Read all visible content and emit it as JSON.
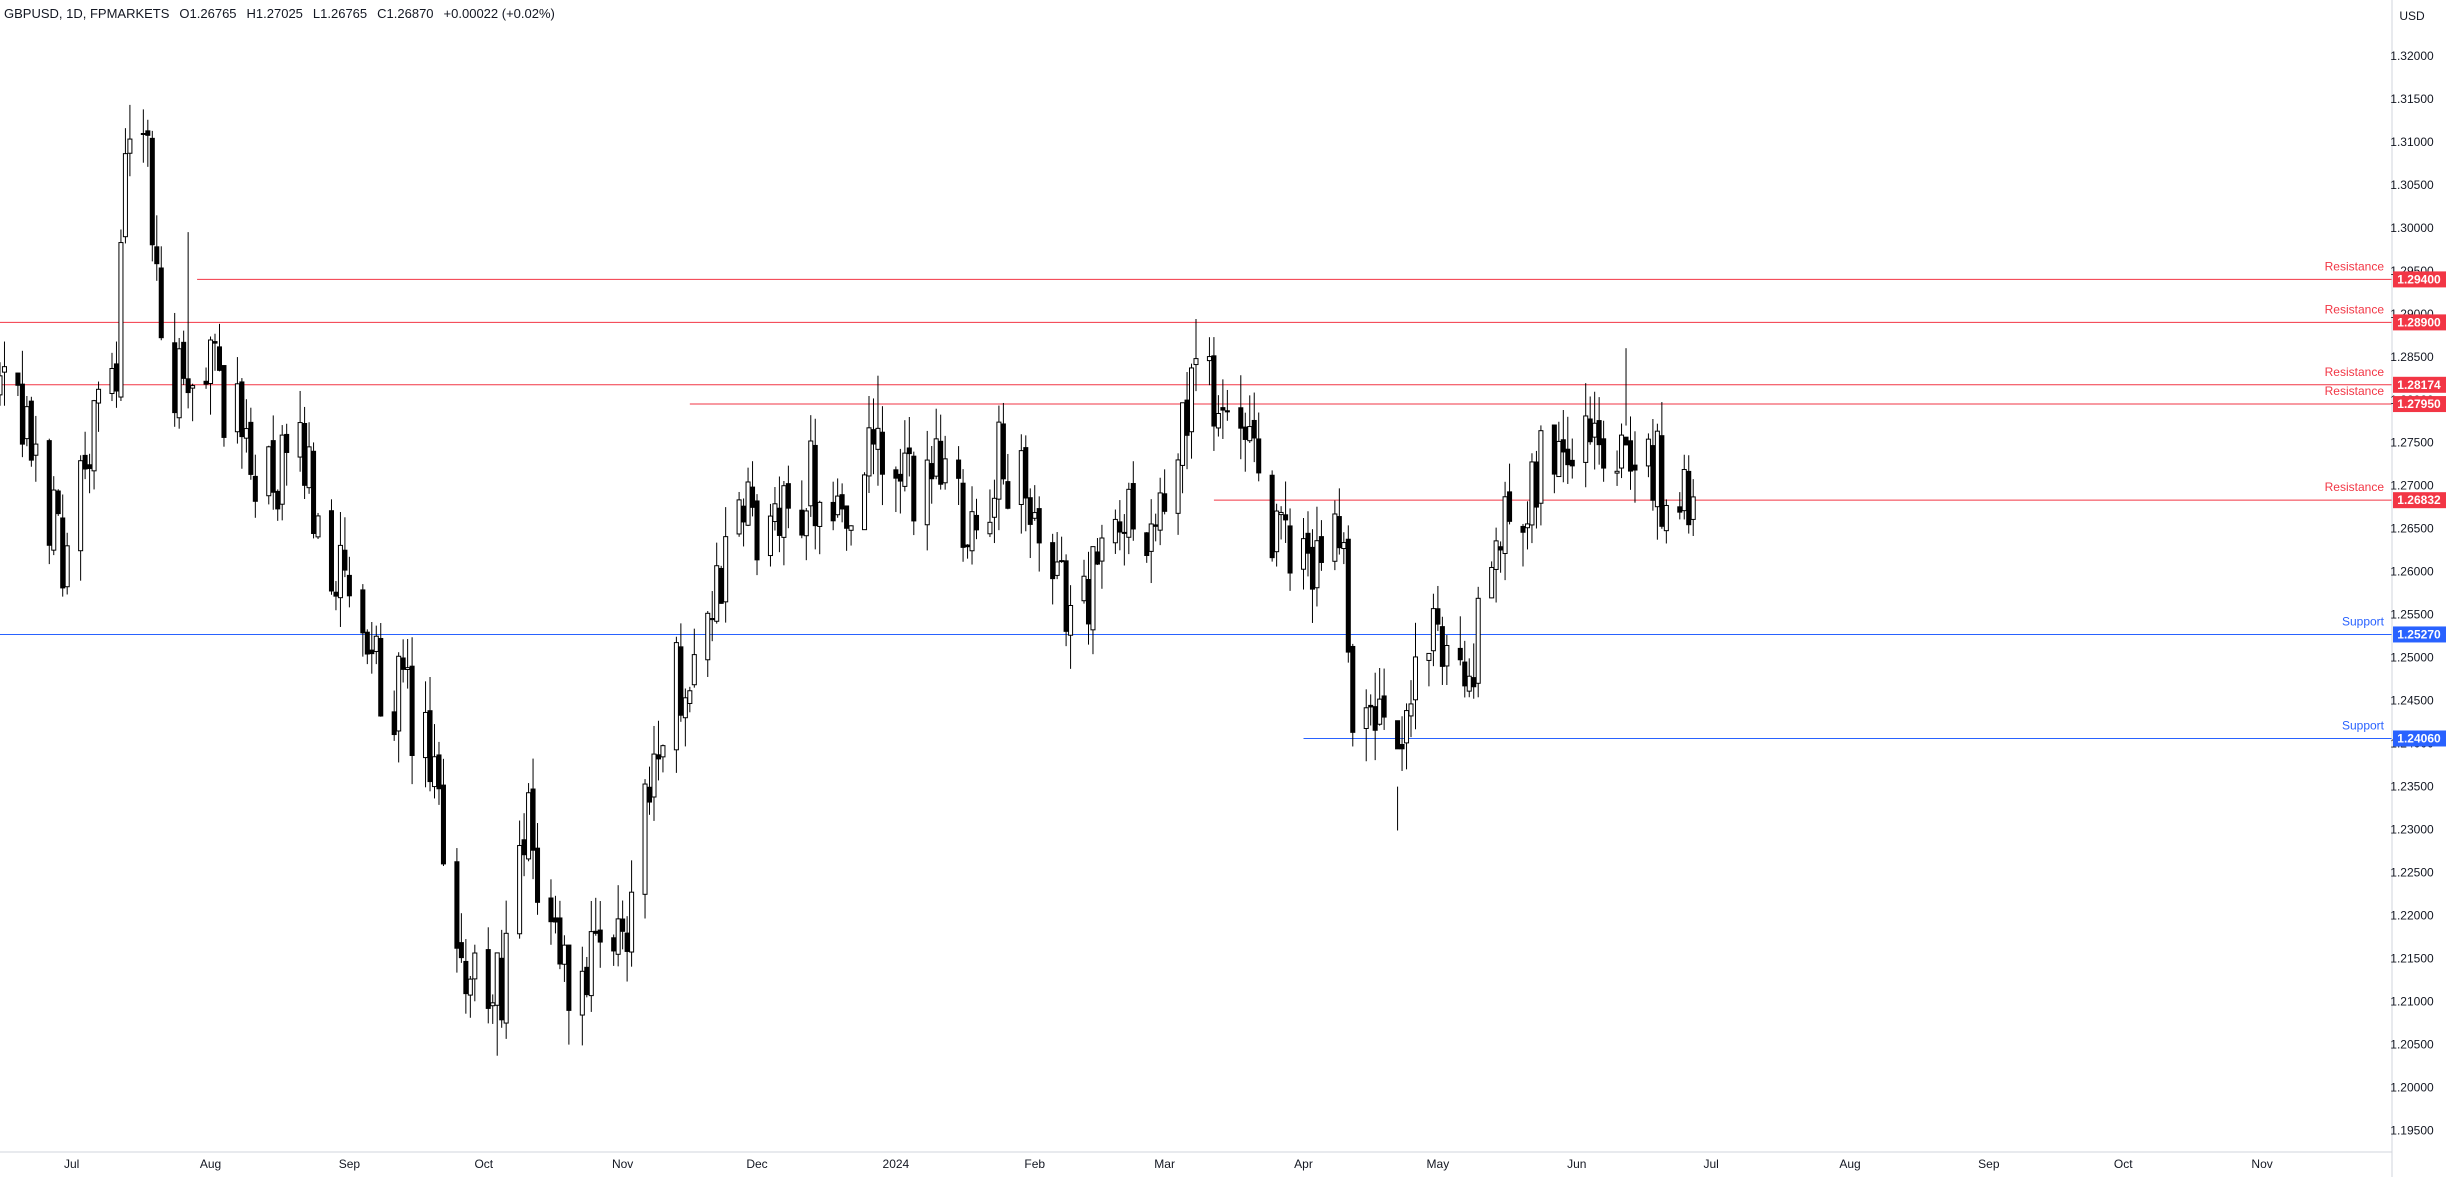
{
  "header": {
    "symbol": "GBPUSD, 1D, FPMARKETS",
    "open": "O1.26765",
    "high": "H1.27025",
    "low": "L1.26765",
    "close": "C1.26870",
    "change": "+0.00022 (+0.02%)"
  },
  "currency_label": "USD",
  "colors": {
    "resistance": "#f23645",
    "support": "#2962ff",
    "candle": "#000000",
    "grid_axis": "#787b86",
    "text": "#131722",
    "up_body": "#ffffff"
  },
  "chart_data": {
    "type": "candlestick",
    "timeframe": "1D",
    "ylim": [
      1.1925,
      1.3265
    ],
    "y_ticks": [
      "1.32000",
      "1.31500",
      "1.31000",
      "1.30500",
      "1.30000",
      "1.29500",
      "1.29000",
      "1.28500",
      "1.28000",
      "1.27500",
      "1.27000",
      "1.26500",
      "1.26000",
      "1.25500",
      "1.25000",
      "1.24500",
      "1.24000",
      "1.23500",
      "1.23000",
      "1.22500",
      "1.22000",
      "1.21500",
      "1.21000",
      "1.20500",
      "1.20000",
      "1.19500"
    ],
    "x_ticks": [
      "Jul",
      "Aug",
      "Sep",
      "Oct",
      "Nov",
      "Dec",
      "2024",
      "Feb",
      "Mar",
      "Apr",
      "May",
      "Jun",
      "Jul",
      "Aug",
      "Sep",
      "Oct",
      "Nov"
    ],
    "x_range": [
      "2023-06-15",
      "2024-11-30"
    ],
    "last_close": 1.2687,
    "levels": [
      {
        "kind": "resistance",
        "label": "Resistance",
        "price": 1.294,
        "price_label": "1.29400",
        "from": "2023-07-29"
      },
      {
        "kind": "resistance",
        "label": "Resistance",
        "price": 1.289,
        "price_label": "1.28900",
        "from": "2023-06-15"
      },
      {
        "kind": "resistance",
        "label": "Resistance",
        "price": 1.28174,
        "price_label": "1.28174",
        "from": "2023-06-15"
      },
      {
        "kind": "resistance",
        "label": "Resistance",
        "price": 1.2795,
        "price_label": "1.27950",
        "from": "2023-11-16"
      },
      {
        "kind": "resistance",
        "label": "Resistance",
        "price": 1.26832,
        "price_label": "1.26832",
        "from": "2024-03-12"
      },
      {
        "kind": "support",
        "label": "Support",
        "price": 1.2527,
        "price_label": "1.25270",
        "from": "2023-06-15"
      },
      {
        "kind": "support",
        "label": "Support",
        "price": 1.2406,
        "price_label": "1.24060",
        "from": "2024-04-01"
      }
    ],
    "close_path": [
      [
        "2023-06-15",
        1.281
      ],
      [
        "2023-06-22",
        1.274
      ],
      [
        "2023-06-29",
        1.263
      ],
      [
        "2023-07-06",
        1.276
      ],
      [
        "2023-07-11",
        1.286
      ],
      [
        "2023-07-14",
        1.313
      ],
      [
        "2023-07-18",
        1.307
      ],
      [
        "2023-07-21",
        1.286
      ],
      [
        "2023-07-27",
        1.279
      ],
      [
        "2023-07-31",
        1.286
      ],
      [
        "2023-08-07",
        1.277
      ],
      [
        "2023-08-15",
        1.269
      ],
      [
        "2023-08-21",
        1.274
      ],
      [
        "2023-08-28",
        1.262
      ],
      [
        "2023-09-05",
        1.249
      ],
      [
        "2023-09-12",
        1.246
      ],
      [
        "2023-09-19",
        1.237
      ],
      [
        "2023-09-26",
        1.216
      ],
      [
        "2023-10-03",
        1.208
      ],
      [
        "2023-10-11",
        1.229
      ],
      [
        "2023-10-20",
        1.212
      ],
      [
        "2023-10-27",
        1.213
      ],
      [
        "2023-11-02",
        1.219
      ],
      [
        "2023-11-06",
        1.236
      ],
      [
        "2023-11-14",
        1.248
      ],
      [
        "2023-11-21",
        1.256
      ],
      [
        "2023-11-28",
        1.267
      ],
      [
        "2023-12-05",
        1.264
      ],
      [
        "2023-12-13",
        1.271
      ],
      [
        "2023-12-20",
        1.267
      ],
      [
        "2023-12-27",
        1.273
      ],
      [
        "2024-01-04",
        1.269
      ],
      [
        "2024-01-11",
        1.274
      ],
      [
        "2024-01-18",
        1.266
      ],
      [
        "2024-01-25",
        1.273
      ],
      [
        "2024-01-31",
        1.267
      ],
      [
        "2024-02-05",
        1.256
      ],
      [
        "2024-02-14",
        1.259
      ],
      [
        "2024-02-22",
        1.268
      ],
      [
        "2024-03-01",
        1.265
      ],
      [
        "2024-03-08",
        1.285
      ],
      [
        "2024-03-14",
        1.279
      ],
      [
        "2024-03-20",
        1.272
      ],
      [
        "2024-03-27",
        1.263
      ],
      [
        "2024-04-03",
        1.261
      ],
      [
        "2024-04-09",
        1.267
      ],
      [
        "2024-04-12",
        1.245
      ],
      [
        "2024-04-19",
        1.241
      ],
      [
        "2024-04-22",
        1.235
      ],
      [
        "2024-04-26",
        1.249
      ],
      [
        "2024-05-03",
        1.252
      ],
      [
        "2024-05-09",
        1.249
      ],
      [
        "2024-05-15",
        1.265
      ],
      [
        "2024-05-22",
        1.272
      ],
      [
        "2024-05-29",
        1.276
      ],
      [
        "2024-06-03",
        1.278
      ],
      [
        "2024-06-07",
        1.273
      ],
      [
        "2024-06-12",
        1.279
      ],
      [
        "2024-06-14",
        1.267
      ],
      [
        "2024-06-19",
        1.272
      ],
      [
        "2024-06-24",
        1.2655
      ],
      [
        "2024-06-26",
        1.2685
      ],
      [
        "2024-06-27",
        1.2687
      ]
    ],
    "spikes": [
      {
        "date": "2023-07-14",
        "high": 1.3143,
        "low": 1.306
      },
      {
        "date": "2023-07-27",
        "high": 1.2995,
        "low": 1.279
      },
      {
        "date": "2023-10-04",
        "high": 1.212,
        "low": 1.2037
      },
      {
        "date": "2023-12-28",
        "high": 1.2828,
        "low": 1.27
      },
      {
        "date": "2024-03-08",
        "high": 1.2894,
        "low": 1.281
      },
      {
        "date": "2024-04-22",
        "high": 1.235,
        "low": 1.2299
      },
      {
        "date": "2024-06-12",
        "high": 1.286,
        "low": 1.277
      }
    ]
  }
}
